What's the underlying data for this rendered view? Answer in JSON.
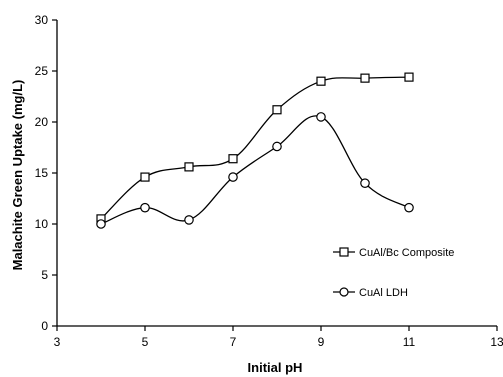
{
  "chart_data": {
    "type": "line",
    "xlabel": "Initial pH",
    "ylabel": "Malachite Green Uptake (mg/L)",
    "xlim": [
      3,
      13
    ],
    "ylim": [
      0,
      30
    ],
    "x_ticks": [
      3,
      5,
      7,
      9,
      11,
      13
    ],
    "y_ticks": [
      0,
      5,
      10,
      15,
      20,
      25,
      30
    ],
    "x_tick_labels": [
      "3",
      "5",
      "7",
      "9",
      "11",
      "13"
    ],
    "y_tick_labels": [
      "0",
      "5",
      "10",
      "15",
      "20",
      "25",
      "30"
    ],
    "smooth": true,
    "grid": false,
    "legend_position": "right",
    "series": [
      {
        "name": "CuAl/Bc Composite",
        "marker": "square",
        "color": "#000000",
        "x": [
          4,
          5,
          6,
          7,
          8,
          9,
          10,
          11
        ],
        "y": [
          10.5,
          14.6,
          15.6,
          16.4,
          21.2,
          24.0,
          24.3,
          24.4
        ]
      },
      {
        "name": "CuAl LDH",
        "marker": "circle",
        "color": "#000000",
        "x": [
          4,
          5,
          6,
          7,
          8,
          9,
          10,
          11
        ],
        "y": [
          10.0,
          11.6,
          10.4,
          14.6,
          17.6,
          20.5,
          14.0,
          11.6
        ]
      }
    ]
  }
}
